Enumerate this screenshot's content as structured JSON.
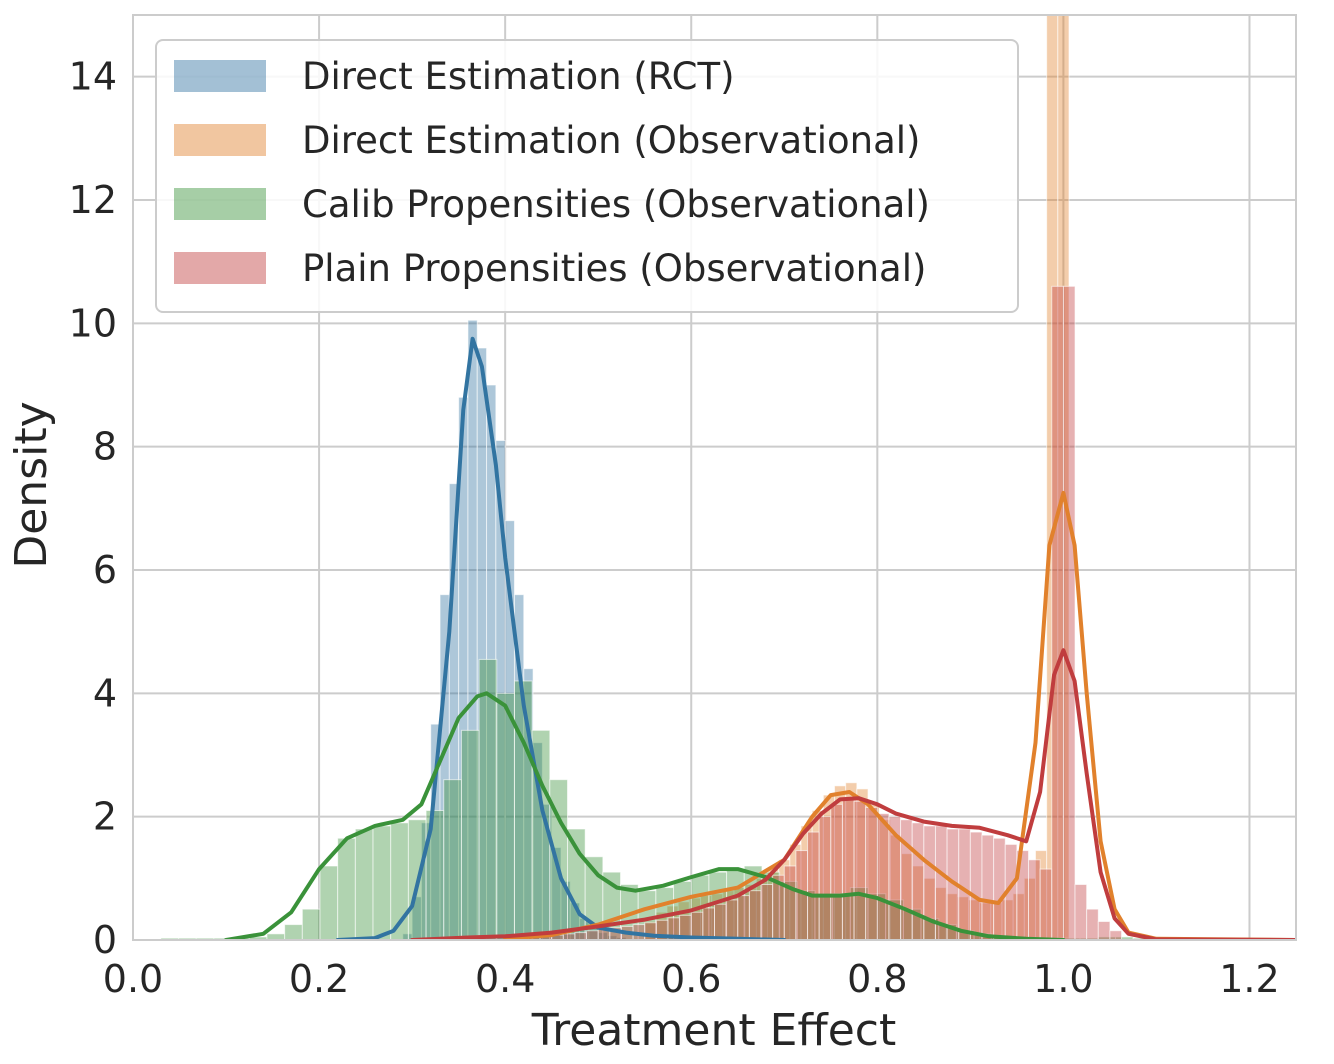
{
  "chart_data": {
    "type": "histogram_kde",
    "xlabel": "Treatment Effect",
    "ylabel": "Density",
    "xlim": [
      0.0,
      1.25
    ],
    "ylim": [
      0,
      15
    ],
    "xticks": [
      0.0,
      0.2,
      0.4,
      0.6,
      0.8,
      1.0,
      1.2
    ],
    "xtick_labels": [
      "0.0",
      "0.2",
      "0.4",
      "0.6",
      "0.8",
      "1.0",
      "1.2"
    ],
    "yticks": [
      0,
      2,
      4,
      6,
      8,
      10,
      12,
      14
    ],
    "ytick_labels": [
      "0",
      "2",
      "4",
      "6",
      "8",
      "10",
      "12",
      "14"
    ],
    "grid": true,
    "legend_position": "top-left",
    "colors": {
      "grid": "#cccccc",
      "frame": "#cccccc",
      "background": "#ffffff"
    },
    "series": [
      {
        "name": "Direct Estimation (RCT)",
        "color": "#3274a1",
        "bin_width": 0.01,
        "hist": [
          [
            0.29,
            0.1
          ],
          [
            0.3,
            0.7
          ],
          [
            0.31,
            1.9
          ],
          [
            0.32,
            3.5
          ],
          [
            0.33,
            5.6
          ],
          [
            0.34,
            7.4
          ],
          [
            0.35,
            8.8
          ],
          [
            0.36,
            10.05
          ],
          [
            0.37,
            9.6
          ],
          [
            0.38,
            9.0
          ],
          [
            0.39,
            8.1
          ],
          [
            0.4,
            6.8
          ],
          [
            0.41,
            5.6
          ],
          [
            0.42,
            4.4
          ],
          [
            0.43,
            3.2
          ],
          [
            0.44,
            2.2
          ],
          [
            0.45,
            1.5
          ],
          [
            0.46,
            0.95
          ],
          [
            0.47,
            0.6
          ],
          [
            0.48,
            0.35
          ],
          [
            0.49,
            0.2
          ],
          [
            0.5,
            0.12
          ],
          [
            0.51,
            0.07
          ],
          [
            0.52,
            0.04
          ]
        ],
        "kde": [
          [
            0.22,
            0.0
          ],
          [
            0.26,
            0.03
          ],
          [
            0.28,
            0.15
          ],
          [
            0.3,
            0.55
          ],
          [
            0.32,
            1.8
          ],
          [
            0.34,
            5.0
          ],
          [
            0.355,
            8.6
          ],
          [
            0.365,
            9.75
          ],
          [
            0.375,
            9.3
          ],
          [
            0.39,
            7.7
          ],
          [
            0.4,
            6.2
          ],
          [
            0.42,
            3.8
          ],
          [
            0.44,
            2.1
          ],
          [
            0.46,
            1.0
          ],
          [
            0.48,
            0.42
          ],
          [
            0.5,
            0.2
          ],
          [
            0.53,
            0.12
          ],
          [
            0.56,
            0.07
          ],
          [
            0.6,
            0.04
          ],
          [
            0.65,
            0.02
          ],
          [
            0.7,
            0.0
          ]
        ]
      },
      {
        "name": "Direct Estimation (Observational)",
        "color": "#e1812c",
        "bin_width": 0.012,
        "hist": [
          [
            0.55,
            0.3
          ],
          [
            0.562,
            0.45
          ],
          [
            0.574,
            0.55
          ],
          [
            0.586,
            0.62
          ],
          [
            0.598,
            0.68
          ],
          [
            0.61,
            0.72
          ],
          [
            0.622,
            0.75
          ],
          [
            0.634,
            0.8
          ],
          [
            0.646,
            0.85
          ],
          [
            0.658,
            0.9
          ],
          [
            0.67,
            1.0
          ],
          [
            0.682,
            1.15
          ],
          [
            0.694,
            1.3
          ],
          [
            0.706,
            1.55
          ],
          [
            0.718,
            1.85
          ],
          [
            0.73,
            2.1
          ],
          [
            0.742,
            2.35
          ],
          [
            0.754,
            2.5
          ],
          [
            0.766,
            2.55
          ],
          [
            0.778,
            2.45
          ],
          [
            0.79,
            2.2
          ],
          [
            0.802,
            1.95
          ],
          [
            0.814,
            1.7
          ],
          [
            0.826,
            1.4
          ],
          [
            0.838,
            1.2
          ],
          [
            0.85,
            1.0
          ],
          [
            0.862,
            0.85
          ],
          [
            0.874,
            0.75
          ],
          [
            0.886,
            0.7
          ],
          [
            0.898,
            0.65
          ],
          [
            0.91,
            0.6
          ],
          [
            0.922,
            0.6
          ],
          [
            0.934,
            0.65
          ],
          [
            0.946,
            0.75
          ],
          [
            0.958,
            1.0
          ],
          [
            0.97,
            1.45
          ],
          [
            0.982,
            15.0
          ],
          [
            0.994,
            15.0
          ]
        ],
        "kde": [
          [
            0.4,
            0.02
          ],
          [
            0.45,
            0.08
          ],
          [
            0.5,
            0.25
          ],
          [
            0.55,
            0.5
          ],
          [
            0.6,
            0.7
          ],
          [
            0.65,
            0.85
          ],
          [
            0.7,
            1.3
          ],
          [
            0.73,
            2.0
          ],
          [
            0.75,
            2.35
          ],
          [
            0.77,
            2.4
          ],
          [
            0.79,
            2.2
          ],
          [
            0.82,
            1.7
          ],
          [
            0.85,
            1.3
          ],
          [
            0.88,
            0.95
          ],
          [
            0.91,
            0.65
          ],
          [
            0.93,
            0.6
          ],
          [
            0.95,
            1.0
          ],
          [
            0.97,
            3.2
          ],
          [
            0.985,
            6.4
          ],
          [
            1.0,
            7.25
          ],
          [
            1.012,
            6.4
          ],
          [
            1.025,
            4.0
          ],
          [
            1.04,
            1.6
          ],
          [
            1.055,
            0.5
          ],
          [
            1.07,
            0.12
          ],
          [
            1.1,
            0.02
          ],
          [
            1.25,
            0.0
          ]
        ]
      },
      {
        "name": "Calib Propensities (Observational)",
        "color": "#3a923a",
        "bin_width": 0.019,
        "hist": [
          [
            0.03,
            0.03
          ],
          [
            0.049,
            0.03
          ],
          [
            0.068,
            0.03
          ],
          [
            0.087,
            0.03
          ],
          [
            0.106,
            0.03
          ],
          [
            0.125,
            0.05
          ],
          [
            0.144,
            0.1
          ],
          [
            0.163,
            0.25
          ],
          [
            0.182,
            0.5
          ],
          [
            0.201,
            1.2
          ],
          [
            0.22,
            1.65
          ],
          [
            0.239,
            1.8
          ],
          [
            0.258,
            1.85
          ],
          [
            0.277,
            1.9
          ],
          [
            0.296,
            1.95
          ],
          [
            0.315,
            2.1
          ],
          [
            0.334,
            2.6
          ],
          [
            0.353,
            3.4
          ],
          [
            0.372,
            4.55
          ],
          [
            0.391,
            4.0
          ],
          [
            0.41,
            4.2
          ],
          [
            0.429,
            3.4
          ],
          [
            0.448,
            2.6
          ],
          [
            0.467,
            1.8
          ],
          [
            0.486,
            1.35
          ],
          [
            0.505,
            1.1
          ],
          [
            0.524,
            0.9
          ],
          [
            0.543,
            0.8
          ],
          [
            0.562,
            0.85
          ],
          [
            0.581,
            0.95
          ],
          [
            0.6,
            1.05
          ],
          [
            0.619,
            1.1
          ],
          [
            0.638,
            1.15
          ],
          [
            0.657,
            1.2
          ],
          [
            0.676,
            1.1
          ],
          [
            0.695,
            0.95
          ],
          [
            0.714,
            0.8
          ],
          [
            0.733,
            0.7
          ],
          [
            0.752,
            0.75
          ],
          [
            0.771,
            0.85
          ],
          [
            0.79,
            0.75
          ],
          [
            0.809,
            0.65
          ],
          [
            0.828,
            0.5
          ],
          [
            0.847,
            0.35
          ],
          [
            0.866,
            0.25
          ],
          [
            0.885,
            0.15
          ],
          [
            0.904,
            0.1
          ],
          [
            0.923,
            0.06
          ],
          [
            0.942,
            0.04
          ],
          [
            0.961,
            0.03
          ],
          [
            0.98,
            0.03
          ],
          [
            0.999,
            0.03
          ],
          [
            1.018,
            0.03
          ],
          [
            1.037,
            0.05
          ],
          [
            1.056,
            0.05
          ],
          [
            1.075,
            0.03
          ]
        ],
        "kde": [
          [
            0.1,
            0.0
          ],
          [
            0.14,
            0.1
          ],
          [
            0.17,
            0.45
          ],
          [
            0.2,
            1.15
          ],
          [
            0.23,
            1.65
          ],
          [
            0.26,
            1.85
          ],
          [
            0.29,
            1.95
          ],
          [
            0.31,
            2.2
          ],
          [
            0.33,
            2.9
          ],
          [
            0.35,
            3.6
          ],
          [
            0.37,
            3.95
          ],
          [
            0.38,
            4.0
          ],
          [
            0.4,
            3.8
          ],
          [
            0.42,
            3.2
          ],
          [
            0.44,
            2.5
          ],
          [
            0.46,
            1.9
          ],
          [
            0.48,
            1.4
          ],
          [
            0.5,
            1.05
          ],
          [
            0.52,
            0.85
          ],
          [
            0.54,
            0.8
          ],
          [
            0.57,
            0.88
          ],
          [
            0.6,
            1.02
          ],
          [
            0.63,
            1.15
          ],
          [
            0.65,
            1.15
          ],
          [
            0.68,
            1.02
          ],
          [
            0.71,
            0.82
          ],
          [
            0.73,
            0.72
          ],
          [
            0.76,
            0.72
          ],
          [
            0.78,
            0.75
          ],
          [
            0.8,
            0.68
          ],
          [
            0.83,
            0.5
          ],
          [
            0.86,
            0.3
          ],
          [
            0.89,
            0.15
          ],
          [
            0.92,
            0.06
          ],
          [
            0.96,
            0.02
          ],
          [
            1.0,
            0.0
          ]
        ]
      },
      {
        "name": "Plain Propensities (Observational)",
        "color": "#c03d3e",
        "bin_width": 0.0125,
        "hist": [
          [
            0.4,
            0.05
          ],
          [
            0.4125,
            0.05
          ],
          [
            0.425,
            0.06
          ],
          [
            0.4375,
            0.07
          ],
          [
            0.45,
            0.08
          ],
          [
            0.4625,
            0.1
          ],
          [
            0.475,
            0.12
          ],
          [
            0.4875,
            0.15
          ],
          [
            0.5,
            0.18
          ],
          [
            0.5125,
            0.2
          ],
          [
            0.525,
            0.22
          ],
          [
            0.5375,
            0.25
          ],
          [
            0.55,
            0.28
          ],
          [
            0.5625,
            0.32
          ],
          [
            0.575,
            0.36
          ],
          [
            0.5875,
            0.4
          ],
          [
            0.6,
            0.45
          ],
          [
            0.6125,
            0.52
          ],
          [
            0.625,
            0.58
          ],
          [
            0.6375,
            0.65
          ],
          [
            0.65,
            0.72
          ],
          [
            0.6625,
            0.8
          ],
          [
            0.675,
            0.9
          ],
          [
            0.6875,
            1.05
          ],
          [
            0.7,
            1.2
          ],
          [
            0.7125,
            1.45
          ],
          [
            0.725,
            1.75
          ],
          [
            0.7375,
            2.0
          ],
          [
            0.75,
            2.2
          ],
          [
            0.7625,
            2.3
          ],
          [
            0.775,
            2.25
          ],
          [
            0.7875,
            2.15
          ],
          [
            0.8,
            2.05
          ],
          [
            0.8125,
            2.0
          ],
          [
            0.825,
            1.95
          ],
          [
            0.8375,
            1.9
          ],
          [
            0.85,
            1.85
          ],
          [
            0.8625,
            1.85
          ],
          [
            0.875,
            1.8
          ],
          [
            0.8875,
            1.8
          ],
          [
            0.9,
            1.75
          ],
          [
            0.9125,
            1.7
          ],
          [
            0.925,
            1.65
          ],
          [
            0.9375,
            1.55
          ],
          [
            0.95,
            1.45
          ],
          [
            0.9625,
            1.3
          ],
          [
            0.975,
            1.15
          ],
          [
            0.9875,
            10.6
          ],
          [
            1.0,
            10.6
          ],
          [
            1.0125,
            0.9
          ],
          [
            1.025,
            0.5
          ],
          [
            1.0375,
            0.3
          ],
          [
            1.05,
            0.15
          ]
        ],
        "kde": [
          [
            0.3,
            0.0
          ],
          [
            0.36,
            0.04
          ],
          [
            0.4,
            0.06
          ],
          [
            0.45,
            0.12
          ],
          [
            0.5,
            0.22
          ],
          [
            0.55,
            0.33
          ],
          [
            0.6,
            0.48
          ],
          [
            0.65,
            0.72
          ],
          [
            0.68,
            0.98
          ],
          [
            0.7,
            1.3
          ],
          [
            0.72,
            1.72
          ],
          [
            0.74,
            2.05
          ],
          [
            0.76,
            2.28
          ],
          [
            0.78,
            2.3
          ],
          [
            0.8,
            2.2
          ],
          [
            0.82,
            2.05
          ],
          [
            0.85,
            1.92
          ],
          [
            0.88,
            1.85
          ],
          [
            0.91,
            1.82
          ],
          [
            0.94,
            1.7
          ],
          [
            0.96,
            1.6
          ],
          [
            0.975,
            2.4
          ],
          [
            0.99,
            4.3
          ],
          [
            1.0,
            4.7
          ],
          [
            1.012,
            4.2
          ],
          [
            1.025,
            2.7
          ],
          [
            1.04,
            1.1
          ],
          [
            1.055,
            0.35
          ],
          [
            1.07,
            0.1
          ],
          [
            1.1,
            0.01
          ],
          [
            1.25,
            0.0
          ]
        ]
      }
    ]
  }
}
